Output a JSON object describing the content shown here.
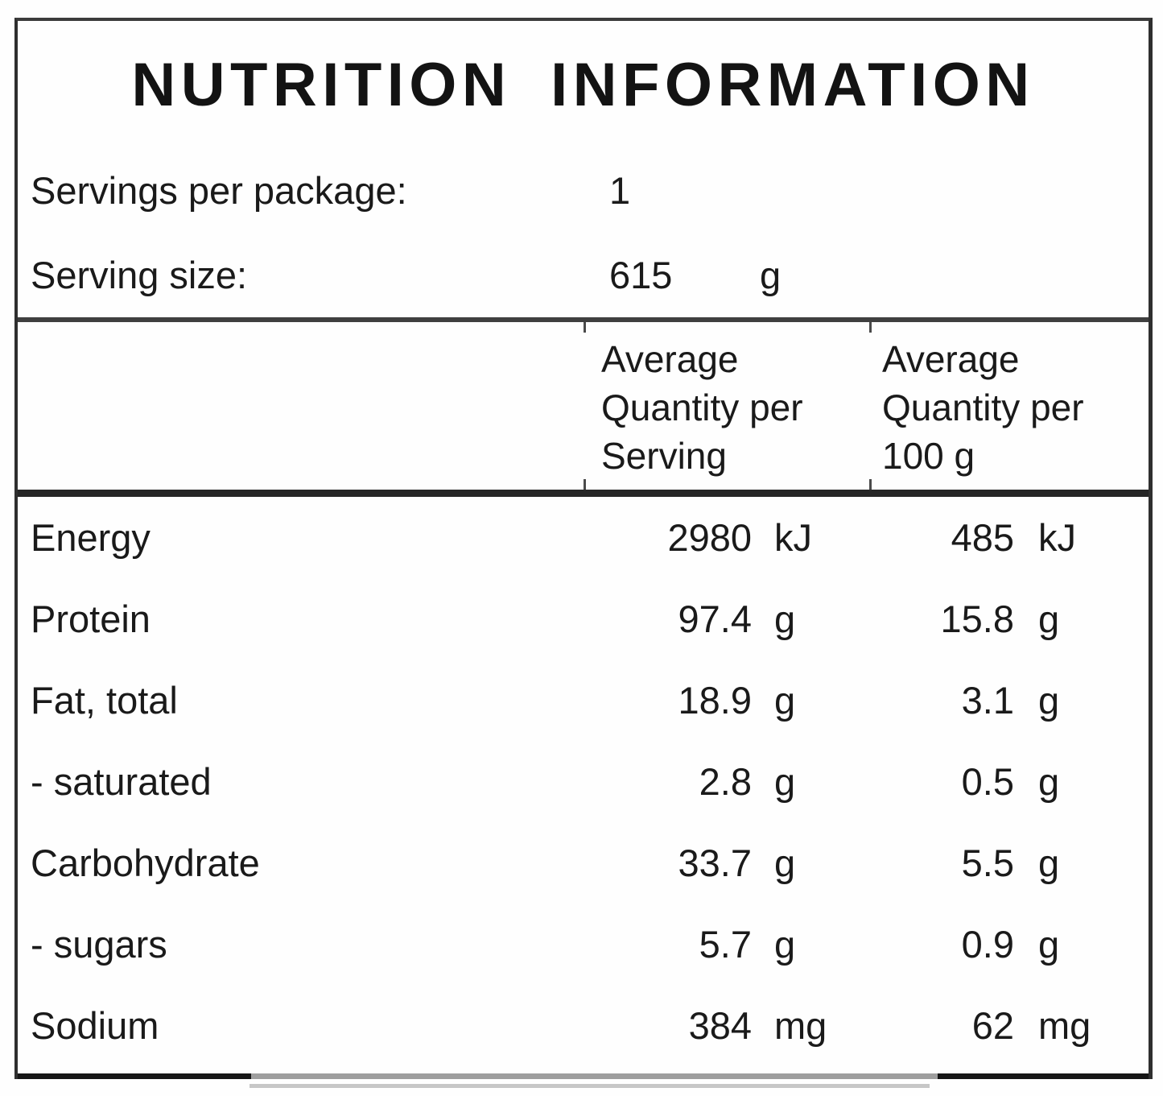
{
  "title": "NUTRITION INFORMATION",
  "package_info": {
    "servings_label": "Servings per package:",
    "servings_value": "1",
    "serving_size_label": "Serving size:",
    "serving_size_value": "615",
    "serving_size_unit": "g"
  },
  "table": {
    "column_headers": {
      "per_serving": "Average Quantity per Serving",
      "per_100g": "Average Quantity per 100 g"
    },
    "rows": [
      {
        "nutrient": "Energy",
        "per_serving": "2980",
        "per_serving_unit": "kJ",
        "per_100g": "485",
        "per_100g_unit": "kJ"
      },
      {
        "nutrient": "Protein",
        "per_serving": "97.4",
        "per_serving_unit": "g",
        "per_100g": "15.8",
        "per_100g_unit": "g"
      },
      {
        "nutrient": "Fat, total",
        "per_serving": "18.9",
        "per_serving_unit": "g",
        "per_100g": "3.1",
        "per_100g_unit": "g"
      },
      {
        "nutrient": "- saturated",
        "per_serving": "2.8",
        "per_serving_unit": "g",
        "per_100g": "0.5",
        "per_100g_unit": "g"
      },
      {
        "nutrient": "Carbohydrate",
        "per_serving": "33.7",
        "per_serving_unit": "g",
        "per_100g": "5.5",
        "per_100g_unit": "g"
      },
      {
        "nutrient": "- sugars",
        "per_serving": "5.7",
        "per_serving_unit": "g",
        "per_100g": "0.9",
        "per_100g_unit": "g"
      },
      {
        "nutrient": "Sodium",
        "per_serving": "384",
        "per_serving_unit": "mg",
        "per_100g": "62",
        "per_100g_unit": "mg"
      }
    ]
  },
  "colors": {
    "text": "#1a1a1a",
    "border": "#2f2f2f",
    "background": "#fefefe"
  }
}
